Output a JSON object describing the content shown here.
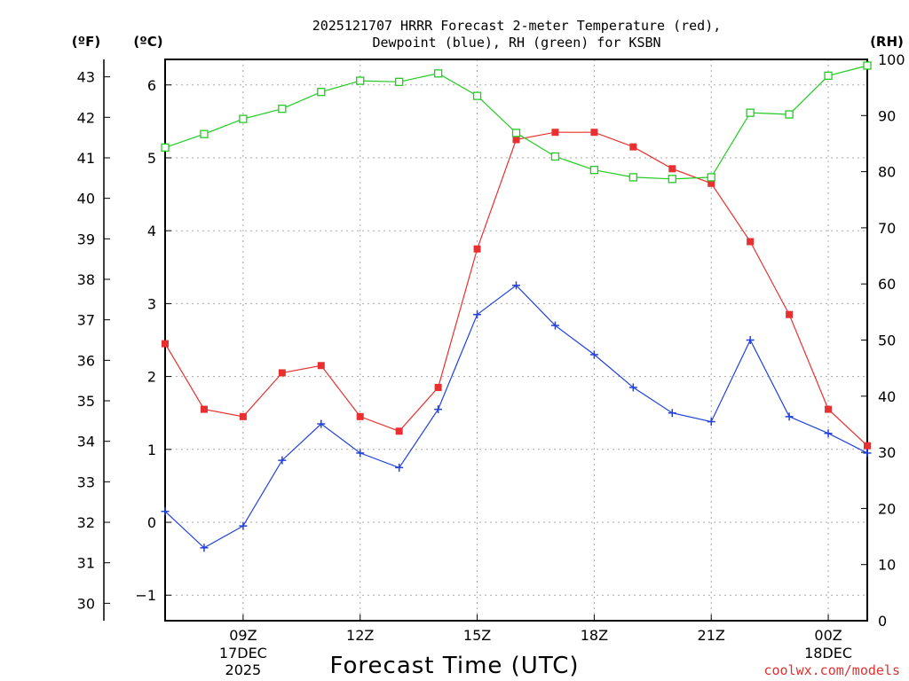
{
  "chart_data": {
    "type": "line",
    "title_line1": "2025121707 HRRR Forecast 2-meter Temperature (red),",
    "title_line2": "Dewpoint (blue), RH (green) for KSBN",
    "xlabel": "Forecast Time (UTC)",
    "credit": "coolwx.com/models",
    "left_outer_unit": "(ºF)",
    "left_inner_unit": "(ºC)",
    "right_unit": "(RH)",
    "x": [
      7,
      8,
      9,
      10,
      11,
      12,
      13,
      14,
      15,
      16,
      17,
      18,
      19,
      20,
      21,
      22,
      23,
      24,
      25
    ],
    "x_ticks": [
      {
        "x": 9,
        "label": "09Z",
        "sub1": "17DEC",
        "sub2": "2025"
      },
      {
        "x": 12,
        "label": "12Z",
        "sub1": "",
        "sub2": ""
      },
      {
        "x": 15,
        "label": "15Z",
        "sub1": "",
        "sub2": ""
      },
      {
        "x": 18,
        "label": "18Z",
        "sub1": "",
        "sub2": ""
      },
      {
        "x": 21,
        "label": "21Z",
        "sub1": "",
        "sub2": ""
      },
      {
        "x": 24,
        "label": "00Z",
        "sub1": "18DEC",
        "sub2": ""
      }
    ],
    "xlim": [
      7,
      25
    ],
    "c_ylim": [
      -1.35,
      6.35
    ],
    "c_ticks": [
      "-1",
      "0",
      "1",
      "2",
      "3",
      "4",
      "5",
      "6"
    ],
    "f_ticks": [
      "30",
      "31",
      "32",
      "33",
      "34",
      "35",
      "36",
      "37",
      "38",
      "39",
      "40",
      "41",
      "42",
      "43"
    ],
    "rh_ylim": [
      0,
      100
    ],
    "rh_ticks": [
      "0",
      "10",
      "20",
      "30",
      "40",
      "50",
      "60",
      "70",
      "80",
      "90",
      "100"
    ],
    "series": [
      {
        "name": "Temperature",
        "axis": "C",
        "color": "#e83030",
        "marker": "square-filled",
        "values": [
          2.45,
          1.55,
          1.45,
          2.05,
          2.15,
          1.45,
          1.25,
          1.85,
          3.75,
          5.25,
          5.35,
          5.35,
          5.15,
          4.85,
          4.65,
          3.85,
          2.85,
          1.55,
          1.05
        ]
      },
      {
        "name": "Dewpoint",
        "axis": "C",
        "color": "#2040e0",
        "marker": "plus",
        "values": [
          0.15,
          -0.35,
          -0.05,
          0.85,
          1.35,
          0.95,
          0.75,
          1.55,
          2.85,
          3.25,
          2.7,
          2.3,
          1.85,
          1.5,
          1.38,
          2.5,
          1.45,
          1.22,
          0.95
        ]
      },
      {
        "name": "RH",
        "axis": "RH",
        "color": "#20cc20",
        "marker": "square-open",
        "values": [
          84.3,
          86.7,
          89.4,
          91.2,
          94.2,
          96.2,
          96.0,
          97.5,
          93.5,
          86.9,
          82.7,
          80.3,
          79.0,
          78.7,
          79.0,
          90.5,
          90.2,
          97.1,
          98.9
        ]
      }
    ]
  }
}
